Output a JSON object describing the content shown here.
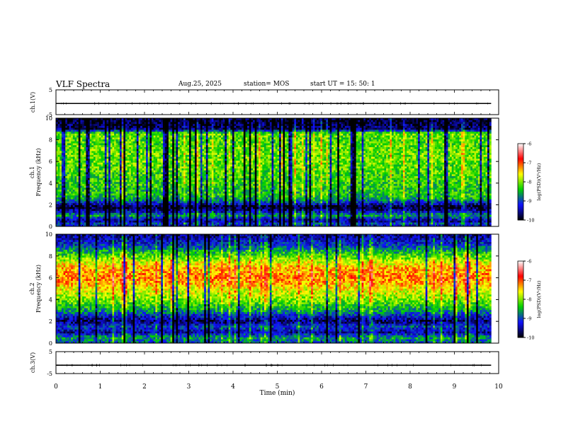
{
  "header": {
    "title": "VLF Spectra",
    "date": "Aug.25, 2025",
    "station": "station= MOS",
    "start": "start  UT =   15: 50: 1"
  },
  "chart_data": [
    {
      "type": "line",
      "panel": "ch1-waveform",
      "ylabel": "ch.1(V)",
      "ylim": [
        -5,
        5
      ],
      "y_ticks": [
        "5",
        "-5"
      ],
      "series": [
        {
          "x": [
            0,
            9.83
          ],
          "y": [
            -0.5,
            -0.5
          ]
        }
      ]
    },
    {
      "type": "heatmap",
      "panel": "ch1-spectrogram",
      "ylabel_lines": [
        "ch.1",
        "Frequency (kHz)"
      ],
      "ylim": [
        0,
        10
      ],
      "y_ticks": [
        "0",
        "2",
        "4",
        "6",
        "8",
        "10"
      ],
      "xlim": [
        0,
        9.83
      ],
      "colorbar": {
        "label": "log(PSD)(V²/Hz)",
        "range": [
          -10,
          -6
        ],
        "ticks": [
          "-6",
          "-7",
          "-8",
          "-9",
          "-10"
        ],
        "colors": [
          "#000000",
          "#1010ff",
          "#00d000",
          "#ffff00",
          "#ff0000",
          "#ffffff"
        ]
      },
      "intensity_profile": {
        "freq_kHz": [
          0,
          0.3,
          0.5,
          1,
          1.4,
          1.8,
          2.5,
          3,
          4,
          5,
          6,
          7,
          8,
          8.6,
          9,
          9.5,
          10
        ],
        "log_psd": [
          -9.3,
          -9.0,
          -9.6,
          -8.6,
          -9.4,
          -9.9,
          -8.6,
          -8.4,
          -8.3,
          -8.2,
          -8.1,
          -8.1,
          -8.2,
          -8.1,
          -9.7,
          -9.8,
          -9.9
        ]
      }
    },
    {
      "type": "heatmap",
      "panel": "ch2-spectrogram",
      "ylabel_lines": [
        "ch.2",
        "Frequency (kHz)"
      ],
      "ylim": [
        0,
        10
      ],
      "y_ticks": [
        "0",
        "2",
        "4",
        "6",
        "8",
        "10"
      ],
      "xlim": [
        0,
        9.83
      ],
      "colorbar": {
        "label": "log(PSD)(V²/Hz)",
        "range": [
          -10,
          -6
        ],
        "ticks": [
          "-6",
          "-7",
          "-8",
          "-9",
          "-10"
        ],
        "colors": [
          "#000000",
          "#1010ff",
          "#00d000",
          "#ffff00",
          "#ff0000",
          "#ffffff"
        ]
      },
      "intensity_profile": {
        "freq_kHz": [
          0,
          0.5,
          1,
          1.5,
          2,
          2.5,
          3,
          4,
          5,
          5.5,
          6,
          6.5,
          7,
          7.5,
          8,
          8.5,
          9,
          10
        ],
        "log_psd": [
          -9.0,
          -8.6,
          -9.5,
          -9.0,
          -9.7,
          -9.2,
          -8.6,
          -8.0,
          -7.6,
          -7.3,
          -7.2,
          -7.3,
          -7.4,
          -7.8,
          -8.2,
          -8.6,
          -9.1,
          -9.6
        ]
      }
    },
    {
      "type": "line",
      "panel": "ch3-waveform",
      "ylabel": "ch.3(V)",
      "ylim": [
        -5,
        5
      ],
      "y_ticks": [
        "5",
        "-5"
      ],
      "xlabel": "Time (min)",
      "xlim": [
        0,
        10
      ],
      "x_ticks": [
        "0",
        "1",
        "2",
        "3",
        "4",
        "5",
        "6",
        "7",
        "8",
        "9",
        "10"
      ],
      "series": [
        {
          "x": [
            0,
            9.83
          ],
          "y": [
            -1.2,
            -1.2
          ]
        }
      ]
    }
  ]
}
